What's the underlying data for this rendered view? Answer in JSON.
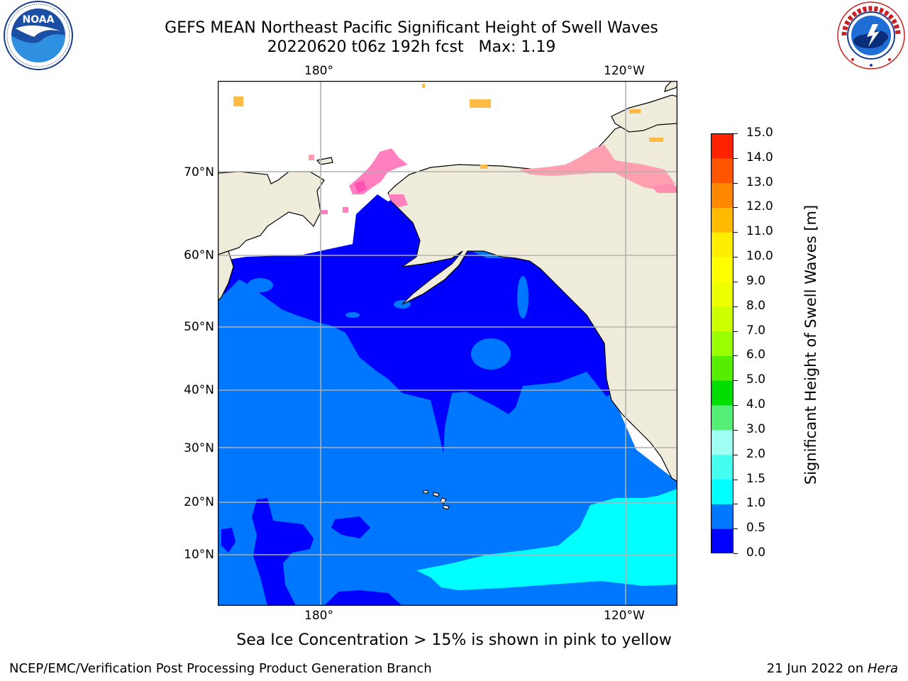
{
  "header": {
    "title_line1": "GEFS MEAN Northeast Pacific Significant Height of Swell Waves",
    "title_line2": "20220620 t06z 192h fcst   Max: 1.19"
  },
  "logos": {
    "left": {
      "name": "NOAA",
      "ring_text": "NATIONAL OCEANIC AND ATMOSPHERIC ADMINISTRATION · U.S. DEPARTMENT OF COMMERCE"
    },
    "right": {
      "name": "NATIONAL WEATHER SERVICE"
    }
  },
  "map": {
    "lon_labels_top": [
      "180°",
      "120°W"
    ],
    "lon_labels_bottom": [
      "180°",
      "120°W"
    ],
    "lat_labels": [
      "70°N",
      "60°N",
      "50°N",
      "40°N",
      "30°N",
      "20°N",
      "10°N"
    ],
    "colors": {
      "land": "#efecdc",
      "band_0_0.5": "#0000ff",
      "band_0.5_1": "#0077ff",
      "band_1_1.5": "#00ffff",
      "ice": "#ff7fbf",
      "ice_edge": "#ffbb44",
      "grid": "#b0b0b0"
    }
  },
  "colorbar": {
    "label": "Significant Height of Swell Waves [m]",
    "ticks": [
      "15.0",
      "14.0",
      "13.0",
      "12.0",
      "11.0",
      "10.0",
      "9.0",
      "8.0",
      "7.0",
      "6.0",
      "5.0",
      "4.0",
      "3.0",
      "2.0",
      "1.5",
      "1.0",
      "0.5",
      "0.0"
    ],
    "colors": [
      "#0000ff",
      "#0077ff",
      "#00ffff",
      "#44fff0",
      "#9ffff5",
      "#55ee77",
      "#00dd00",
      "#55ee00",
      "#99ff00",
      "#ccff00",
      "#eeff00",
      "#ffff00",
      "#ffee00",
      "#ffbb00",
      "#ff8800",
      "#ff5500",
      "#ff2200",
      "#ff0000"
    ]
  },
  "notes": {
    "ice": "Sea Ice Concentration > 15% is shown in pink to yellow"
  },
  "footer": {
    "left": "NCEP/EMC/Verification Post Processing Product Generation Branch",
    "right_date": "21 Jun 2022 on ",
    "right_host": "Hera"
  }
}
